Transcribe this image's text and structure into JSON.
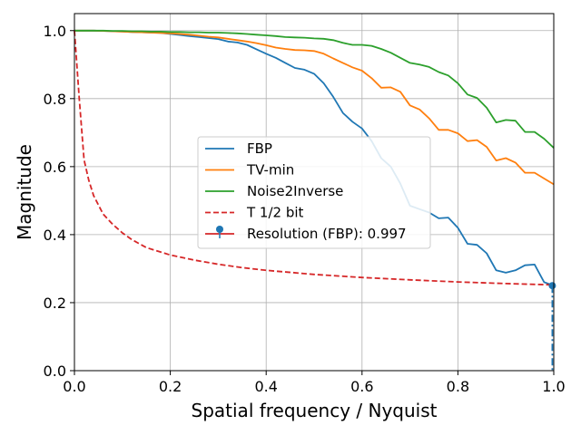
{
  "chart_data": {
    "type": "line",
    "xlabel": "Spatial frequency / Nyquist",
    "ylabel": "Magnitude",
    "xlim": [
      0,
      1
    ],
    "ylim": [
      0,
      1.05
    ],
    "x_ticks": [
      "0.0",
      "0.2",
      "0.4",
      "0.6",
      "0.8",
      "1.0"
    ],
    "y_ticks": [
      "0.0",
      "0.2",
      "0.4",
      "0.6",
      "0.8",
      "1.0"
    ],
    "grid": true,
    "legend_position": "center-right",
    "series": [
      {
        "name": "FBP",
        "color": "#1f77b4",
        "style": "solid",
        "x": [
          0.0,
          0.02,
          0.04,
          0.06,
          0.08,
          0.1,
          0.12,
          0.14,
          0.16,
          0.18,
          0.2,
          0.22,
          0.24,
          0.26,
          0.28,
          0.3,
          0.32,
          0.34,
          0.36,
          0.38,
          0.4,
          0.42,
          0.44,
          0.46,
          0.48,
          0.5,
          0.52,
          0.54,
          0.56,
          0.58,
          0.6,
          0.62,
          0.64,
          0.66,
          0.68,
          0.7,
          0.72,
          0.74,
          0.76,
          0.78,
          0.8,
          0.82,
          0.84,
          0.86,
          0.88,
          0.9,
          0.92,
          0.94,
          0.96,
          0.98,
          1.0
        ],
        "y": [
          1.0,
          1.0,
          1.0,
          0.999,
          0.998,
          0.997,
          0.996,
          0.995,
          0.994,
          0.993,
          0.99,
          0.987,
          0.984,
          0.981,
          0.978,
          0.975,
          0.968,
          0.965,
          0.958,
          0.945,
          0.932,
          0.92,
          0.905,
          0.89,
          0.885,
          0.873,
          0.845,
          0.805,
          0.758,
          0.732,
          0.712,
          0.675,
          0.625,
          0.6,
          0.55,
          0.485,
          0.475,
          0.465,
          0.448,
          0.45,
          0.42,
          0.373,
          0.37,
          0.345,
          0.295,
          0.288,
          0.295,
          0.31,
          0.312,
          0.26,
          0.25
        ]
      },
      {
        "name": "TV-min",
        "color": "#ff7f0e",
        "style": "solid",
        "x": [
          0.0,
          0.02,
          0.04,
          0.06,
          0.08,
          0.1,
          0.12,
          0.14,
          0.16,
          0.18,
          0.2,
          0.22,
          0.24,
          0.26,
          0.28,
          0.3,
          0.32,
          0.34,
          0.36,
          0.38,
          0.4,
          0.42,
          0.44,
          0.46,
          0.48,
          0.5,
          0.52,
          0.54,
          0.56,
          0.58,
          0.6,
          0.62,
          0.64,
          0.66,
          0.68,
          0.7,
          0.72,
          0.74,
          0.76,
          0.78,
          0.8,
          0.82,
          0.84,
          0.86,
          0.88,
          0.9,
          0.92,
          0.94,
          0.96,
          0.98,
          1.0
        ],
        "y": [
          1.0,
          1.0,
          1.0,
          0.999,
          0.998,
          0.997,
          0.996,
          0.995,
          0.994,
          0.993,
          0.992,
          0.99,
          0.988,
          0.985,
          0.982,
          0.98,
          0.976,
          0.972,
          0.968,
          0.963,
          0.957,
          0.95,
          0.946,
          0.943,
          0.942,
          0.94,
          0.932,
          0.918,
          0.905,
          0.892,
          0.882,
          0.86,
          0.832,
          0.833,
          0.82,
          0.78,
          0.768,
          0.742,
          0.708,
          0.708,
          0.698,
          0.675,
          0.678,
          0.658,
          0.618,
          0.625,
          0.612,
          0.582,
          0.582,
          0.565,
          0.548
        ]
      },
      {
        "name": "Noise2Inverse",
        "color": "#2ca02c",
        "style": "solid",
        "x": [
          0.0,
          0.02,
          0.04,
          0.06,
          0.08,
          0.1,
          0.12,
          0.14,
          0.16,
          0.18,
          0.2,
          0.22,
          0.24,
          0.26,
          0.28,
          0.3,
          0.32,
          0.34,
          0.36,
          0.38,
          0.4,
          0.42,
          0.44,
          0.46,
          0.48,
          0.5,
          0.52,
          0.54,
          0.56,
          0.58,
          0.6,
          0.62,
          0.64,
          0.66,
          0.68,
          0.7,
          0.72,
          0.74,
          0.76,
          0.78,
          0.8,
          0.82,
          0.84,
          0.86,
          0.88,
          0.9,
          0.92,
          0.94,
          0.96,
          0.98,
          1.0
        ],
        "y": [
          1.0,
          1.0,
          1.0,
          1.0,
          0.999,
          0.999,
          0.998,
          0.998,
          0.997,
          0.997,
          0.996,
          0.996,
          0.995,
          0.995,
          0.994,
          0.994,
          0.993,
          0.992,
          0.99,
          0.988,
          0.986,
          0.984,
          0.981,
          0.98,
          0.979,
          0.977,
          0.976,
          0.972,
          0.964,
          0.958,
          0.958,
          0.955,
          0.946,
          0.935,
          0.92,
          0.905,
          0.9,
          0.893,
          0.878,
          0.868,
          0.845,
          0.812,
          0.802,
          0.773,
          0.73,
          0.737,
          0.735,
          0.702,
          0.702,
          0.682,
          0.655
        ]
      },
      {
        "name": "T 1/2 bit",
        "color": "#d62728",
        "style": "dashed",
        "x": [
          0.0,
          0.01,
          0.02,
          0.03,
          0.04,
          0.06,
          0.08,
          0.1,
          0.12,
          0.15,
          0.2,
          0.25,
          0.3,
          0.35,
          0.4,
          0.5,
          0.6,
          0.7,
          0.8,
          0.9,
          1.0
        ],
        "y": [
          1.0,
          0.8,
          0.62,
          0.56,
          0.515,
          0.46,
          0.43,
          0.405,
          0.385,
          0.362,
          0.34,
          0.325,
          0.313,
          0.303,
          0.295,
          0.283,
          0.274,
          0.267,
          0.261,
          0.256,
          0.252
        ]
      }
    ],
    "resolution_marker": {
      "label": "Resolution (FBP): 0.997",
      "x": 0.997,
      "y": 0.25,
      "color": "#1f77b4"
    }
  }
}
